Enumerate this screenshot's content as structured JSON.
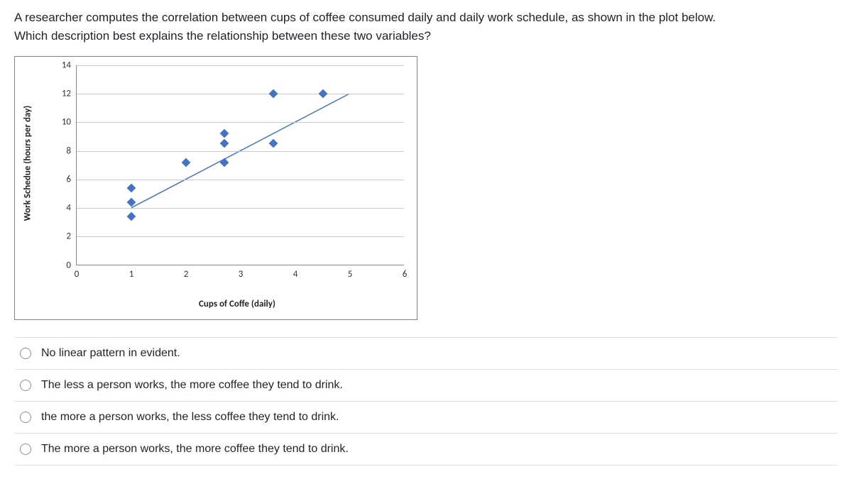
{
  "question": {
    "line1": "A researcher computes the correlation between cups of coffee consumed daily and daily work schedule, as shown in the plot below.",
    "line2": "Which description best explains the relationship between these two variables?"
  },
  "chart": {
    "type": "scatter",
    "x_label": "Cups of Coffe (daily)",
    "y_label": "Work Schedue (hours per day)",
    "xlim": [
      0,
      6
    ],
    "ylim": [
      0,
      14
    ],
    "y_ticks": [
      0,
      2,
      4,
      6,
      8,
      10,
      12,
      14
    ],
    "x_ticks": [
      0,
      1,
      2,
      3,
      4,
      5,
      6
    ],
    "grid_color": "#c9c9c9",
    "axis_color": "#888888",
    "background_color": "#ffffff",
    "marker_color": "#4472c4",
    "marker_shape": "diamond",
    "marker_size": 9,
    "trend_line_color": "#4472c4",
    "trend_line_width": 1.5,
    "trend_line": {
      "x1": 1,
      "y1": 4,
      "x2": 5,
      "y2": 12
    },
    "points": [
      {
        "x": 1,
        "y": 3.4
      },
      {
        "x": 1,
        "y": 4.4
      },
      {
        "x": 1,
        "y": 5.4
      },
      {
        "x": 2,
        "y": 7.2
      },
      {
        "x": 2.7,
        "y": 7.2
      },
      {
        "x": 2.7,
        "y": 8.5
      },
      {
        "x": 2.7,
        "y": 9.2
      },
      {
        "x": 3.6,
        "y": 8.5
      },
      {
        "x": 3.6,
        "y": 12
      },
      {
        "x": 4.5,
        "y": 12
      }
    ],
    "font_family": "Calibri, Arial, sans-serif",
    "tick_fontsize": 13,
    "label_fontsize": 13,
    "label_fontweight": "bold"
  },
  "options": [
    {
      "label": "No linear pattern in evident."
    },
    {
      "label": "The less a person works, the more coffee they tend to drink."
    },
    {
      "label": "the more a person works, the less coffee they tend to drink."
    },
    {
      "label": "The more a person works, the more coffee they tend to drink."
    }
  ]
}
